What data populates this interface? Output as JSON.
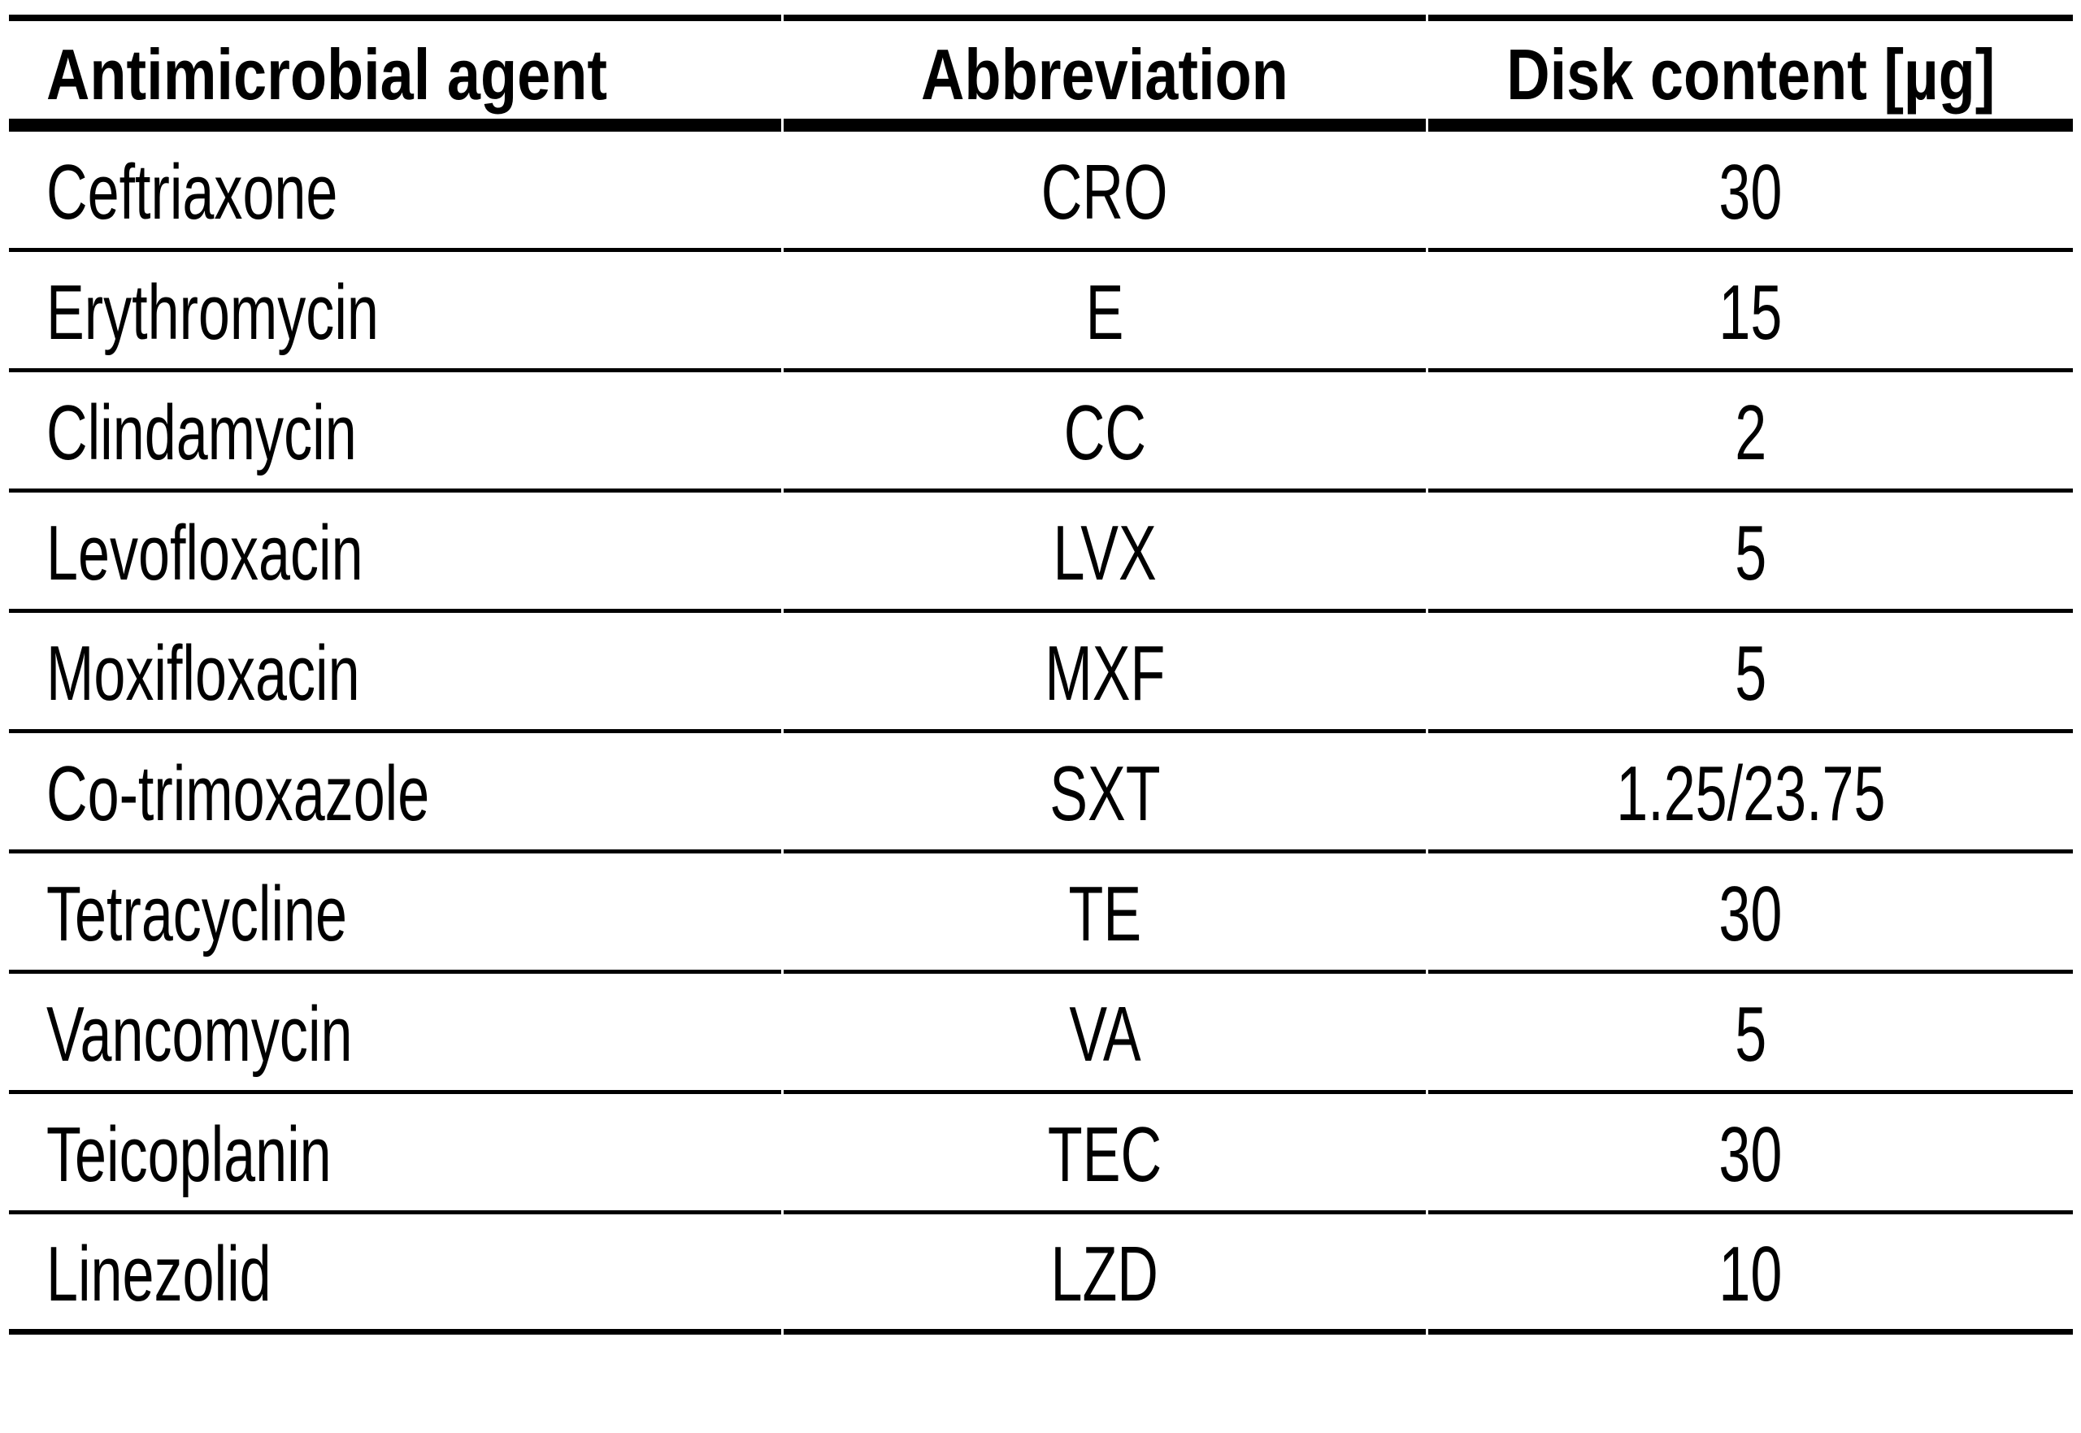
{
  "table": {
    "columns": {
      "agent": "Antimicrobial agent",
      "abbreviation": "Abbreviation",
      "disk_content": "Disk content [µg]"
    },
    "rows": [
      {
        "agent": "Ceftriaxone",
        "abbreviation": "CRO",
        "disk_content": "30"
      },
      {
        "agent": "Erythromycin",
        "abbreviation": "E",
        "disk_content": "15"
      },
      {
        "agent": "Clindamycin",
        "abbreviation": "CC",
        "disk_content": "2"
      },
      {
        "agent": "Levofloxacin",
        "abbreviation": "LVX",
        "disk_content": "5"
      },
      {
        "agent": "Moxifloxacin",
        "abbreviation": "MXF",
        "disk_content": "5"
      },
      {
        "agent": "Co-trimoxazole",
        "abbreviation": "SXT",
        "disk_content": "1.25/23.75"
      },
      {
        "agent": "Tetracycline",
        "abbreviation": "TE",
        "disk_content": "30"
      },
      {
        "agent": "Vancomycin",
        "abbreviation": "VA",
        "disk_content": "5"
      },
      {
        "agent": "Teicoplanin",
        "abbreviation": "TEC",
        "disk_content": "30"
      },
      {
        "agent": "Linezolid",
        "abbreviation": "LZD",
        "disk_content": "10"
      }
    ],
    "text_color": "#000000",
    "background_color": "#ffffff",
    "rule_color": "#000000"
  }
}
